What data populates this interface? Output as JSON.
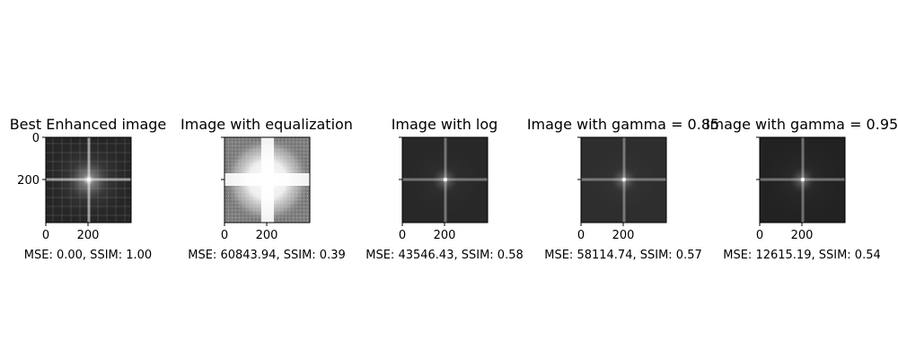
{
  "panels": [
    {
      "title": "Best Enhanced image",
      "metrics": "MSE: 0.00, SSIM: 1.00",
      "render": "enhanced",
      "xticks": [
        "0",
        "200"
      ],
      "yticks": [
        "0",
        "200"
      ],
      "show_ytick_labels": true
    },
    {
      "title": "Image with equalization",
      "metrics": "MSE: 60843.94, SSIM: 0.39",
      "render": "equalized",
      "xticks": [
        "0",
        "200"
      ],
      "yticks": [
        "0",
        "200"
      ],
      "show_ytick_labels": false
    },
    {
      "title": "Image with log",
      "metrics": "MSE: 43546.43, SSIM: 0.58",
      "render": "log",
      "xticks": [
        "0",
        "200"
      ],
      "yticks": [
        "0",
        "200"
      ],
      "show_ytick_labels": false
    },
    {
      "title": "Image with gamma = 0.85",
      "metrics": "MSE: 58114.74, SSIM: 0.57",
      "render": "gamma",
      "xticks": [
        "0",
        "200"
      ],
      "yticks": [
        "0",
        "200"
      ],
      "show_ytick_labels": false
    },
    {
      "title": "Image with gamma = 0.95",
      "metrics": "MSE: 12615.19, SSIM: 0.54",
      "render": "gamma",
      "xticks": [
        "0",
        "200"
      ],
      "yticks": [
        "0",
        "200"
      ],
      "show_ytick_labels": false
    }
  ],
  "colors": {
    "background": "#ffffff",
    "enhanced_base": "#262626",
    "equalized_base": "#7f7f7f",
    "log_base": "#282828",
    "gamma085_base": "#2e2e2e",
    "gamma095_base": "#222222"
  }
}
